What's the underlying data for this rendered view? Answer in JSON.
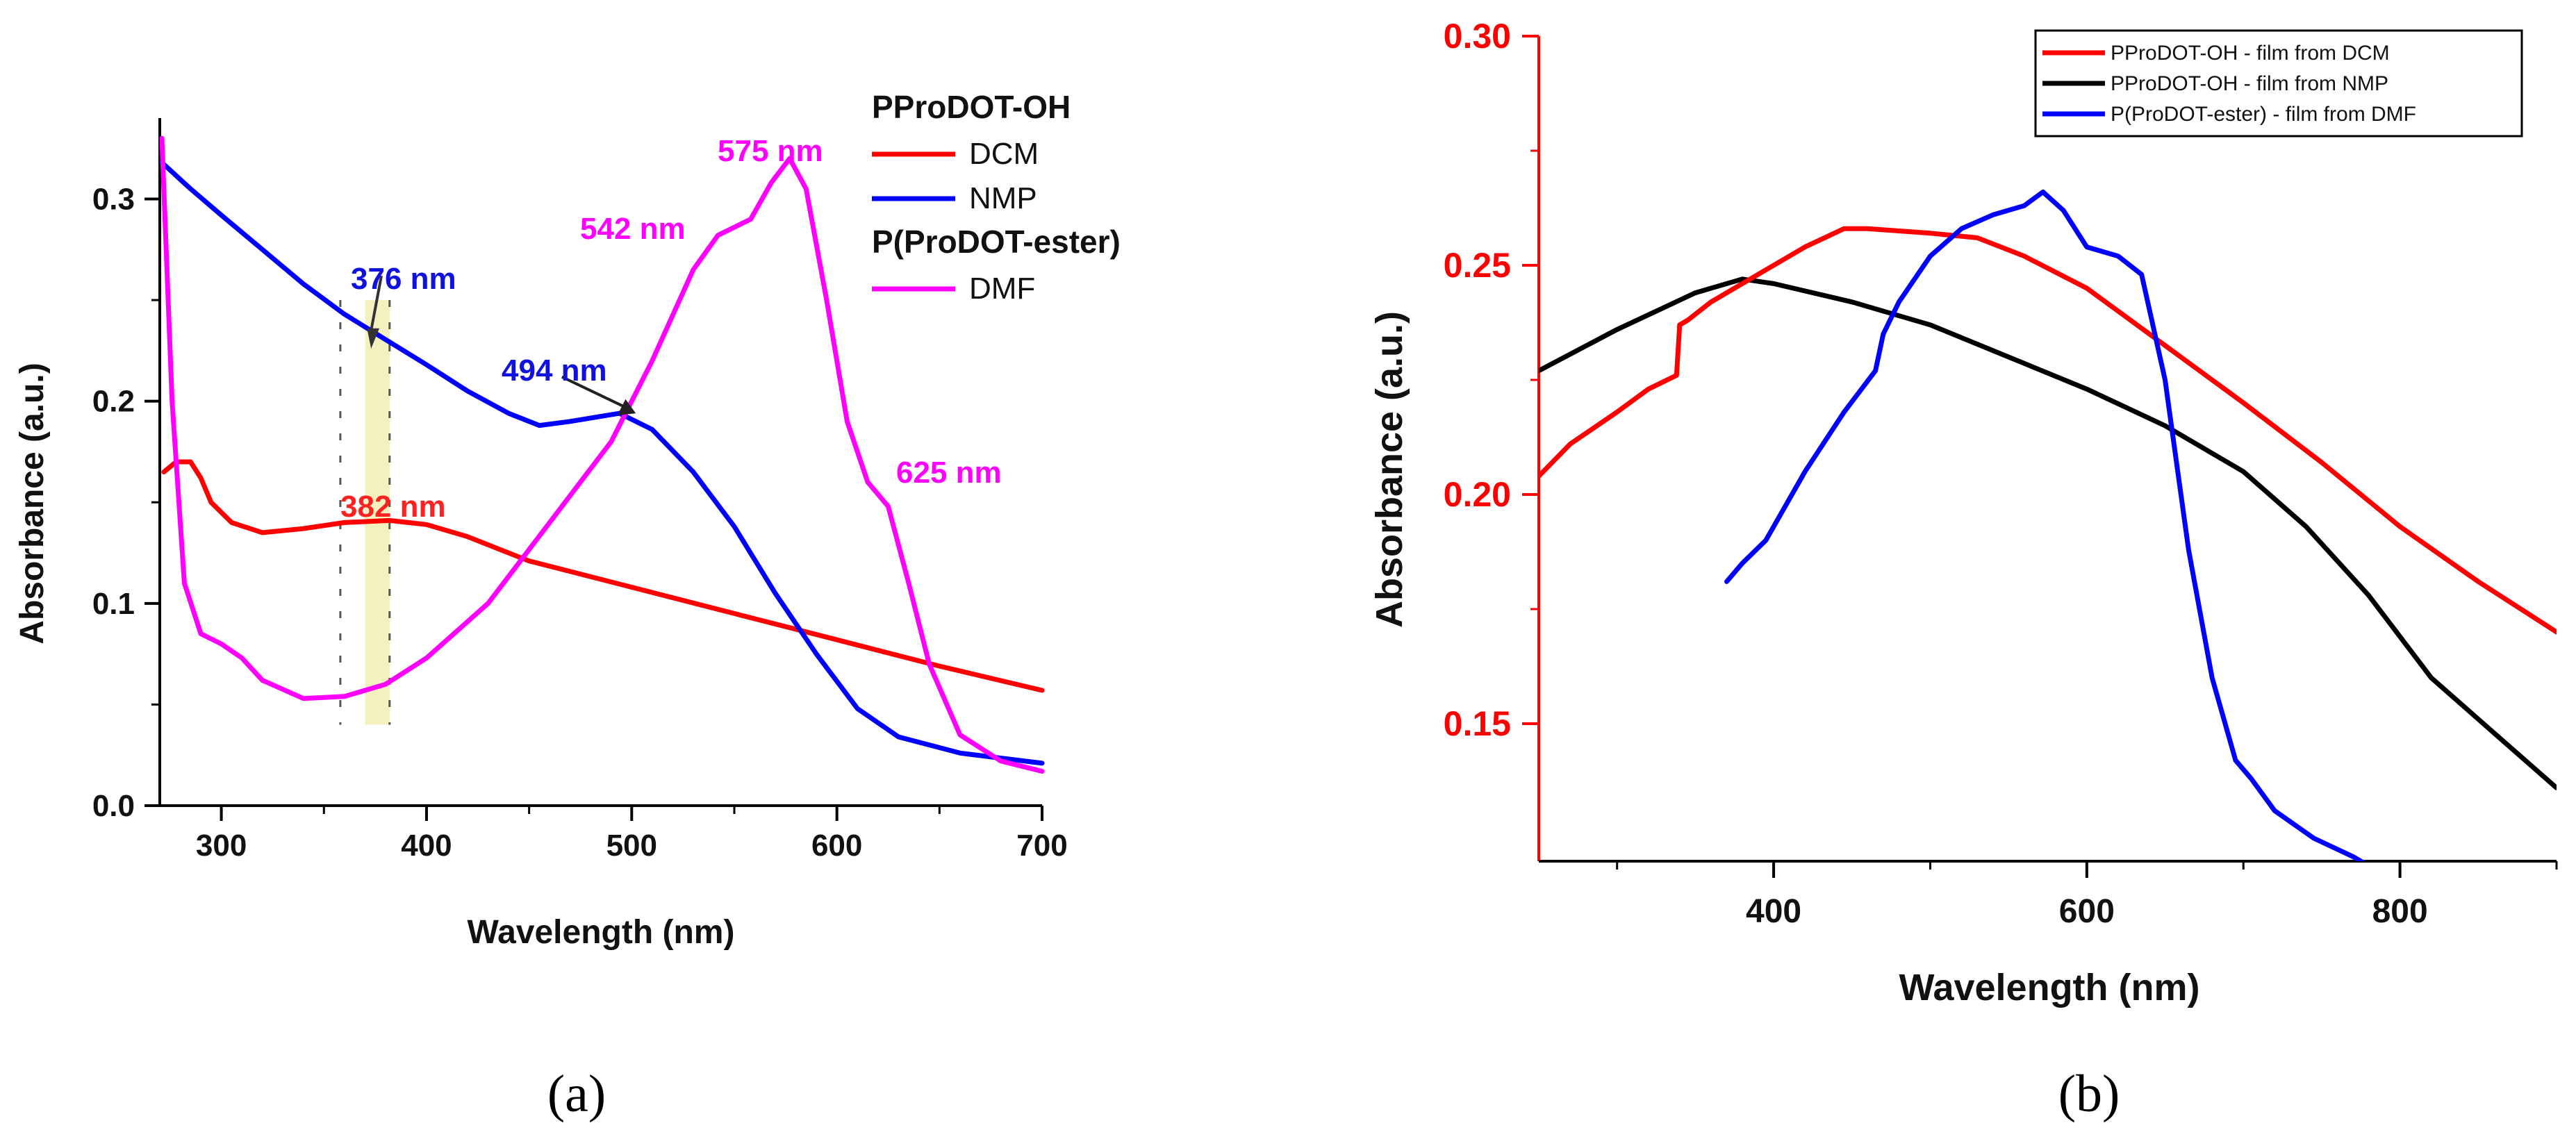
{
  "chart_data": [
    {
      "panel": "a",
      "type": "line",
      "caption": "(a)",
      "xlabel": "Wavelength (nm)",
      "ylabel": "Absorbance (a.u.)",
      "xlim": [
        270,
        700
      ],
      "ylim": [
        0.0,
        0.34
      ],
      "xticks": [
        300,
        400,
        500,
        600,
        700
      ],
      "xtick_labels": [
        "300",
        "400",
        "500",
        "600",
        "700"
      ],
      "yticks": [
        0.0,
        0.1,
        0.2,
        0.3
      ],
      "ytick_labels": [
        "0.0",
        "0.1",
        "0.2",
        "0.3"
      ],
      "grid": false,
      "legend": {
        "placement": "top-right",
        "groups": [
          {
            "title": "PProDOT-OH",
            "entries": [
              {
                "label": "DCM",
                "color": "#ff0000"
              },
              {
                "label": "NMP",
                "color": "#0000ff"
              }
            ]
          },
          {
            "title": "P(ProDOT-ester)",
            "entries": [
              {
                "label": "DMF",
                "color": "#ff00ff"
              }
            ]
          }
        ]
      },
      "series": [
        {
          "name": "DCM",
          "color": "#ff0000",
          "x": [
            272,
            278,
            285,
            290,
            295,
            305,
            320,
            340,
            360,
            382,
            400,
            420,
            450,
            500,
            550,
            600,
            650,
            700
          ],
          "y": [
            0.165,
            0.17,
            0.17,
            0.162,
            0.15,
            0.14,
            0.135,
            0.137,
            0.14,
            0.141,
            0.139,
            0.133,
            0.121,
            0.108,
            0.095,
            0.082,
            0.069,
            0.057
          ]
        },
        {
          "name": "NMP",
          "color": "#0000ff",
          "x": [
            271,
            285,
            300,
            320,
            340,
            360,
            376,
            400,
            420,
            440,
            455,
            470,
            494,
            510,
            530,
            550,
            570,
            590,
            610,
            630,
            660,
            700
          ],
          "y": [
            0.318,
            0.305,
            0.292,
            0.275,
            0.258,
            0.243,
            0.233,
            0.218,
            0.205,
            0.194,
            0.188,
            0.19,
            0.194,
            0.186,
            0.165,
            0.138,
            0.105,
            0.075,
            0.048,
            0.034,
            0.026,
            0.021
          ]
        },
        {
          "name": "DMF",
          "color": "#ff00ff",
          "x": [
            271,
            276,
            282,
            290,
            300,
            310,
            320,
            340,
            360,
            380,
            400,
            430,
            460,
            490,
            510,
            530,
            542,
            558,
            568,
            577,
            585,
            595,
            605,
            615,
            625,
            635,
            645,
            660,
            680,
            700
          ],
          "y": [
            0.33,
            0.2,
            0.11,
            0.085,
            0.08,
            0.073,
            0.062,
            0.053,
            0.054,
            0.06,
            0.073,
            0.1,
            0.14,
            0.18,
            0.22,
            0.265,
            0.282,
            0.29,
            0.308,
            0.32,
            0.305,
            0.25,
            0.19,
            0.16,
            0.148,
            0.11,
            0.07,
            0.035,
            0.022,
            0.017
          ]
        }
      ],
      "annotations": [
        {
          "text": "376 nm",
          "color": "#1010e0",
          "x": 376,
          "y": 0.233
        },
        {
          "text": "494 nm",
          "color": "#1010e0",
          "x": 494,
          "y": 0.194
        },
        {
          "text": "382 nm",
          "color": "#ff2020",
          "x": 382,
          "y": 0.141
        },
        {
          "text": "542 nm",
          "color": "#ff00ff",
          "x": 542,
          "y": 0.282
        },
        {
          "text": "575 nm",
          "color": "#ff00ff",
          "x": 577,
          "y": 0.32
        },
        {
          "text": "625 nm",
          "color": "#ff00ff",
          "x": 625,
          "y": 0.148
        }
      ],
      "highlight_band": {
        "x": [
          370,
          382
        ],
        "y": [
          0.04,
          0.25
        ],
        "color": "#f3eeb4"
      },
      "dashed_guides": [
        {
          "x": 358,
          "y": [
            0.04,
            0.25
          ]
        },
        {
          "x": 382,
          "y": [
            0.04,
            0.25
          ]
        }
      ]
    },
    {
      "panel": "b",
      "type": "line",
      "caption": "(b)",
      "xlabel": "Wavelength (nm)",
      "ylabel": "Absorbance (a.u.)",
      "xlim": [
        250,
        900
      ],
      "ylim": [
        0.12,
        0.3
      ],
      "xticks": [
        400,
        600,
        800
      ],
      "xtick_labels": [
        "400",
        "600",
        "800"
      ],
      "yticks": [
        0.15,
        0.2,
        0.25,
        0.3
      ],
      "ytick_labels": [
        "0.15",
        "0.20",
        "0.25",
        "0.30"
      ],
      "left_axis_color": "#ff0000",
      "grid": false,
      "legend": {
        "placement": "top-right",
        "boxed": true
      },
      "series": [
        {
          "name": "PProDOT-OH - film from DCM",
          "color": "#ff0000",
          "x": [
            250,
            270,
            300,
            320,
            338,
            340,
            345,
            360,
            380,
            400,
            420,
            445,
            460,
            500,
            530,
            560,
            600,
            640,
            700,
            750,
            800,
            850,
            900
          ],
          "y": [
            0.204,
            0.211,
            0.218,
            0.223,
            0.226,
            0.237,
            0.238,
            0.242,
            0.246,
            0.25,
            0.254,
            0.258,
            0.258,
            0.257,
            0.256,
            0.252,
            0.245,
            0.235,
            0.22,
            0.207,
            0.193,
            0.181,
            0.17
          ]
        },
        {
          "name": "PProDOT-OH - film from NMP",
          "color": "#000000",
          "x": [
            250,
            300,
            350,
            380,
            400,
            450,
            500,
            550,
            600,
            650,
            700,
            740,
            780,
            820,
            860,
            900
          ],
          "y": [
            0.227,
            0.236,
            0.244,
            0.247,
            0.246,
            0.242,
            0.237,
            0.23,
            0.223,
            0.215,
            0.205,
            0.193,
            0.178,
            0.16,
            0.148,
            0.136
          ]
        },
        {
          "name": "P(ProDOT-ester) - film from DMF",
          "color": "#0000ff",
          "x": [
            370,
            380,
            395,
            420,
            445,
            465,
            470,
            480,
            500,
            520,
            540,
            560,
            572,
            585,
            600,
            620,
            635,
            650,
            665,
            680,
            695,
            705,
            720,
            745,
            770,
            780
          ],
          "y": [
            0.181,
            0.185,
            0.19,
            0.205,
            0.218,
            0.227,
            0.235,
            0.242,
            0.252,
            0.258,
            0.261,
            0.263,
            0.266,
            0.262,
            0.254,
            0.252,
            0.248,
            0.225,
            0.188,
            0.16,
            0.142,
            0.138,
            0.131,
            0.125,
            0.121,
            0.119
          ]
        }
      ]
    }
  ]
}
